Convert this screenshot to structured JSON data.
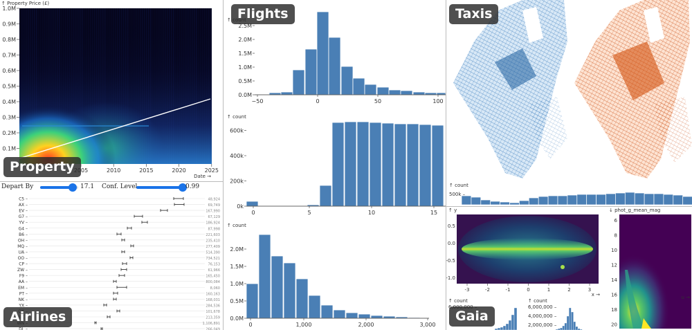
{
  "badges": {
    "property": "Property",
    "flights": "Flights",
    "taxis": "Taxis",
    "airlines": "Airlines",
    "gaia": "Gaia"
  },
  "property": {
    "ylabel": "↑ Property Price (£)",
    "xlabel": "Date →",
    "yticks": [
      "0.1M",
      "0.2M",
      "0.3M",
      "0.4M",
      "0.5M",
      "0.6M",
      "0.7M",
      "0.8M",
      "0.9M",
      "1.0M"
    ],
    "xticks": [
      "2005",
      "2010",
      "2015",
      "2020",
      "2025"
    ]
  },
  "flights": {
    "count_label": "↑ count",
    "chart1": {
      "yticks": [
        "0.0M",
        "0.5M",
        "1.0M",
        "1.5M",
        "2.0M",
        "2.5M"
      ],
      "xticks": [
        "−50",
        "0",
        "50",
        "100"
      ]
    },
    "chart2": {
      "yticks": [
        "0k",
        "200k",
        "400k",
        "600k"
      ],
      "xticks": [
        "0",
        "5",
        "10",
        "15"
      ]
    },
    "chart3": {
      "yticks": [
        "0.0M",
        "0.5M",
        "1.0M",
        "1.5M",
        "2.0M"
      ],
      "xticks": [
        "0",
        "1,000",
        "2,000",
        "3,000"
      ]
    }
  },
  "taxis": {
    "count_label": "↑ count",
    "ytick": "500k –"
  },
  "airlines": {
    "controls": {
      "depart_by_label": "Depart By",
      "depart_by_value": "17.1",
      "depart_by_fraction": 0.85,
      "conf_label": "Conf. Level",
      "conf_value": "0.99",
      "conf_fraction": 0.99
    },
    "rows": [
      {
        "code": "C5",
        "count": "48,924"
      },
      {
        "code": "AX",
        "count": "69,749"
      },
      {
        "code": "EV",
        "count": "167,990"
      },
      {
        "code": "G7",
        "count": "67,129"
      },
      {
        "code": "YV",
        "count": "186,924"
      },
      {
        "code": "G4",
        "count": "87,998"
      },
      {
        "code": "B6",
        "count": "221,603"
      },
      {
        "code": "OH",
        "count": "235,410"
      },
      {
        "code": "MQ",
        "count": "277,409"
      },
      {
        "code": "UA",
        "count": "514,390"
      },
      {
        "code": "OO",
        "count": "734,521"
      },
      {
        "code": "CP",
        "count": "76,153"
      },
      {
        "code": "ZW",
        "count": "61,966"
      },
      {
        "code": "F9",
        "count": "165,450"
      },
      {
        "code": "AA",
        "count": "800,084"
      },
      {
        "code": "EM",
        "count": "8,060"
      },
      {
        "code": "PT",
        "count": "160,163"
      },
      {
        "code": "NK",
        "count": "168,031"
      },
      {
        "code": "YX",
        "count": "284,536"
      },
      {
        "code": "QX",
        "count": "101,678"
      },
      {
        "code": "9E",
        "count": "213,359"
      },
      {
        "code": "WN",
        "count": "1,106,891"
      },
      {
        "code": "DL",
        "count": "266,049"
      },
      {
        "code": "HA",
        "count": "76,444"
      }
    ]
  },
  "gaia": {
    "sky_ylabel": "↑ y",
    "sky_yticks": [
      "0.5",
      "0.0",
      "-0.5",
      "-1.0"
    ],
    "sky_xticks": [
      "-3",
      "-2",
      "-1",
      "0",
      "1",
      "2",
      "3"
    ],
    "sky_xlabel": "x →",
    "mag_ylabel": "↓ phot_g_mean_mag",
    "mag_yticks": [
      "6",
      "8",
      "10",
      "12",
      "14",
      "16",
      "18",
      "20"
    ],
    "mag_xlabel": "u →",
    "count_label": "↑ count",
    "hist1_ytick": "6,000,000 –",
    "hist2_yticks": [
      "6,000,000 –",
      "4,000,000 –",
      "2,000,000 –"
    ]
  }
}
